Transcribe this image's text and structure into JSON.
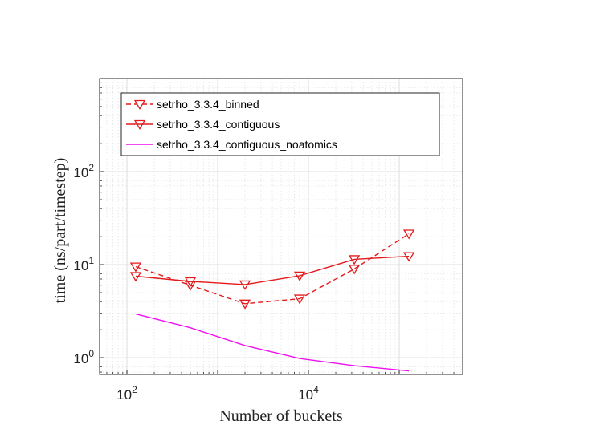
{
  "chart_data": {
    "type": "line",
    "xlabel": "Number of buckets",
    "ylabel": "time (ns/part/timestep)",
    "x_scale": "log",
    "y_scale": "log",
    "xlim": [
      50,
      500000
    ],
    "ylim": [
      0.66,
      1000
    ],
    "grid": true,
    "legend_position": "top-left",
    "x_ticks": [
      {
        "value": 100,
        "base": "10",
        "exp": "2"
      },
      {
        "value": 10000,
        "base": "10",
        "exp": "4"
      }
    ],
    "y_ticks": [
      {
        "value": 1,
        "base": "10",
        "exp": "0"
      },
      {
        "value": 10,
        "base": "10",
        "exp": "1"
      },
      {
        "value": 100,
        "base": "10",
        "exp": "2"
      }
    ],
    "series": [
      {
        "name": "setrho_3.3.4_binned",
        "color": "#e41a1c",
        "dash": "dashed",
        "marker": "triangle-down",
        "x": [
          125,
          500,
          2000,
          8000,
          32000,
          128000
        ],
        "y": [
          9.5,
          6.0,
          3.8,
          4.3,
          9.0,
          21.5
        ]
      },
      {
        "name": "setrho_3.3.4_contiguous",
        "color": "#e41a1c",
        "dash": "solid",
        "marker": "triangle-down",
        "x": [
          125,
          500,
          2000,
          8000,
          32000,
          128000
        ],
        "y": [
          7.5,
          6.6,
          6.1,
          7.6,
          11.4,
          12.3
        ]
      },
      {
        "name": "setrho_3.3.4_contiguous_noatomics",
        "color": "#ee10ee",
        "dash": "solid",
        "marker": "none",
        "x": [
          125,
          500,
          2000,
          8000,
          32000,
          128000
        ],
        "y": [
          2.95,
          2.1,
          1.35,
          0.98,
          0.82,
          0.72
        ]
      }
    ]
  }
}
